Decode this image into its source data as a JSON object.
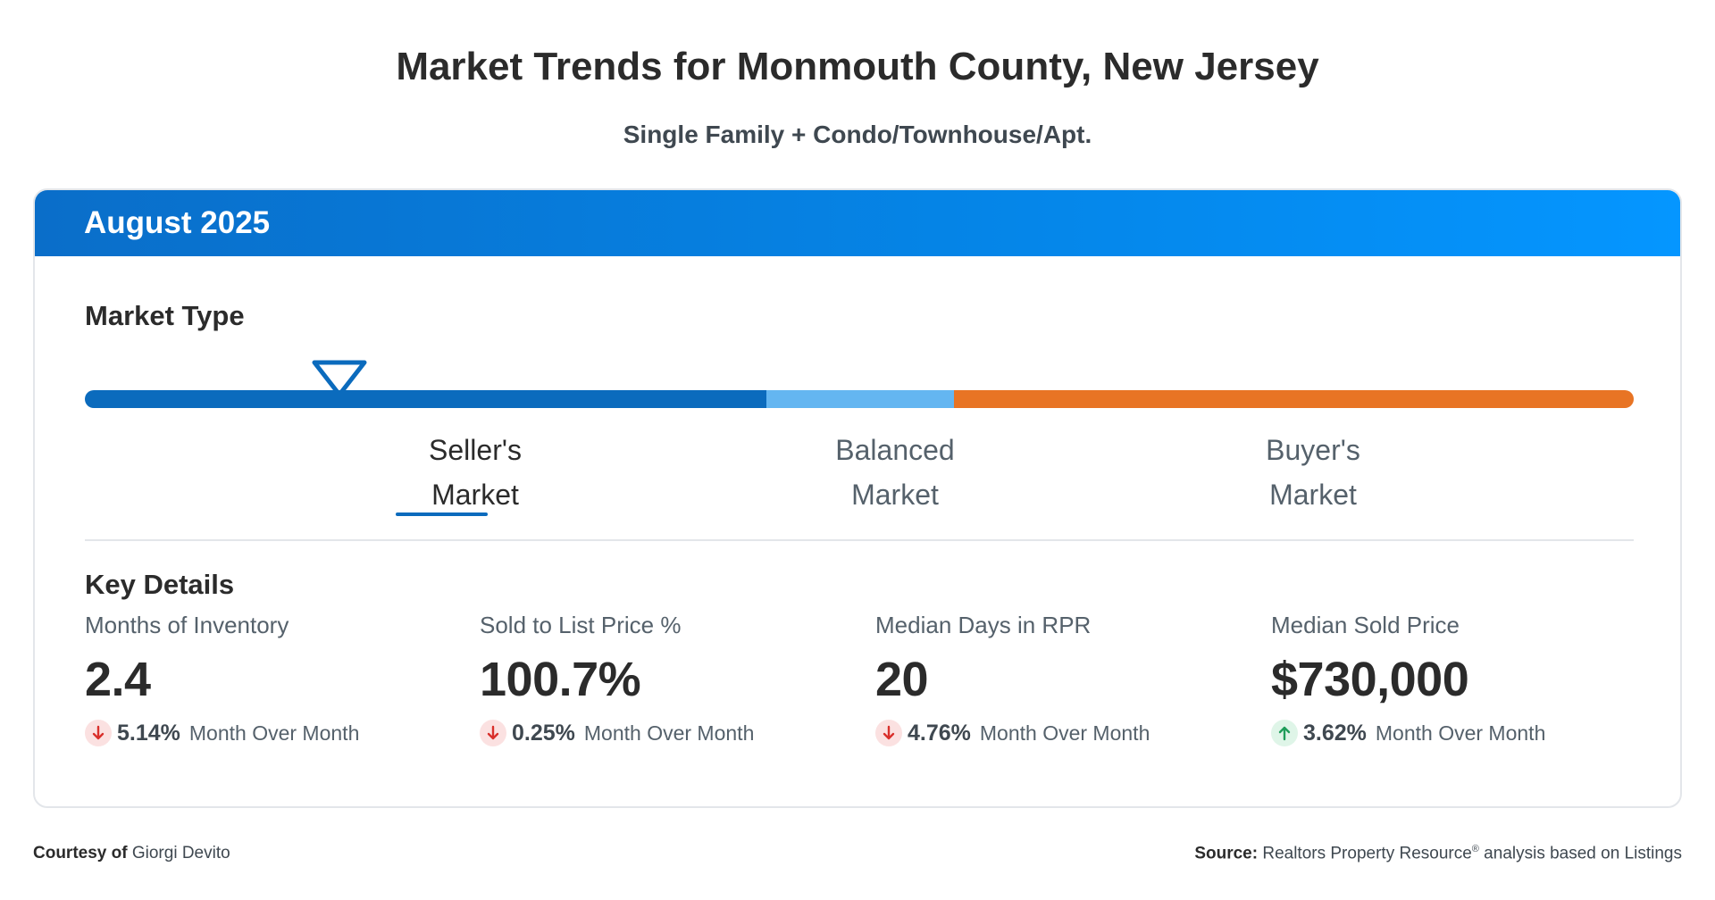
{
  "header": {
    "title": "Market Trends for Monmouth County, New Jersey",
    "subtitle": "Single Family + Condo/Townhouse/Apt."
  },
  "card": {
    "period": "August 2025",
    "market_type": {
      "heading": "Market Type",
      "selected": "Seller's Market",
      "labels": [
        {
          "line1": "Seller's",
          "line2": "Market"
        },
        {
          "line1": "Balanced",
          "line2": "Market"
        },
        {
          "line1": "Buyer's",
          "line2": "Market"
        }
      ],
      "colors": {
        "seller": "#0b6bbd",
        "balanced": "#64b6f1",
        "buyer": "#e87424"
      }
    },
    "key_details": {
      "heading": "Key Details",
      "items": [
        {
          "label": "Months of Inventory",
          "value": "2.4",
          "change_pct": "5.14%",
          "direction": "down",
          "change_text": "Month Over Month"
        },
        {
          "label": "Sold to List Price %",
          "value": "100.7%",
          "change_pct": "0.25%",
          "direction": "down",
          "change_text": "Month Over Month"
        },
        {
          "label": "Median Days in RPR",
          "value": "20",
          "change_pct": "4.76%",
          "direction": "down",
          "change_text": "Month Over Month"
        },
        {
          "label": "Median Sold Price",
          "value": "$730,000",
          "change_pct": "3.62%",
          "direction": "up",
          "change_text": "Month Over Month"
        }
      ]
    }
  },
  "footer": {
    "courtesy_label": "Courtesy of",
    "courtesy_name": "Giorgi Devito",
    "source_label": "Source:",
    "source_text": "Realtors Property Resource",
    "source_mark": "®",
    "source_suffix": " analysis based on Listings"
  },
  "icons": {
    "down": "arrow-down-icon",
    "up": "arrow-up-icon",
    "marker": "triangle-marker-icon"
  }
}
